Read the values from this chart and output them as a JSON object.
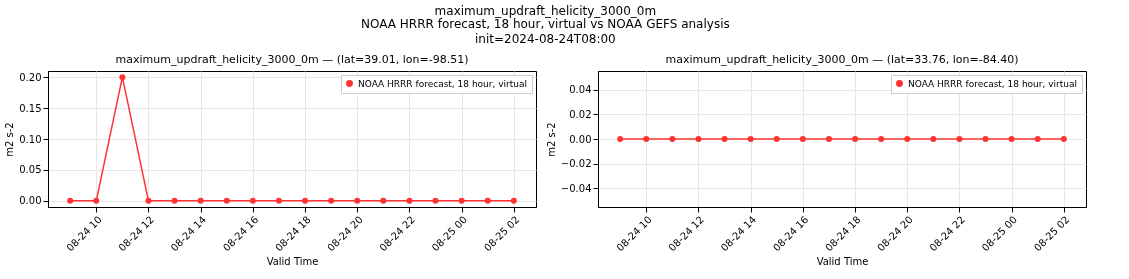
{
  "chart_data": [
    {
      "type": "other",
      "title": "maximum_updraft_helicity_3000_0m",
      "subtitle": "NOAA HRRR forecast, 18 hour, virtual vs NOAA GEFS analysis",
      "annotations": [
        "init=2024-08-24T08:00"
      ]
    },
    {
      "type": "line",
      "title": "maximum_updraft_helicity_3000_0m — (lat=39.01, lon=-98.51)",
      "xlabel": "Valid Time",
      "ylabel": "m2 s-2",
      "x": [
        "2024-08-24T09:00",
        "2024-08-24T10:00",
        "2024-08-24T11:00",
        "2024-08-24T12:00",
        "2024-08-24T13:00",
        "2024-08-24T14:00",
        "2024-08-24T15:00",
        "2024-08-24T16:00",
        "2024-08-24T17:00",
        "2024-08-24T18:00",
        "2024-08-24T19:00",
        "2024-08-24T20:00",
        "2024-08-24T21:00",
        "2024-08-24T22:00",
        "2024-08-24T23:00",
        "2024-08-25T00:00",
        "2024-08-25T01:00",
        "2024-08-25T02:00"
      ],
      "series": [
        {
          "name": "NOAA HRRR forecast, 18 hour, virtual",
          "color": "#ff3333",
          "values": [
            0,
            0,
            0.2,
            0,
            0,
            0,
            0,
            0,
            0,
            0,
            0,
            0,
            0,
            0,
            0,
            0,
            0,
            0
          ]
        }
      ],
      "xlim": [
        "2024-08-24T08:09",
        "2024-08-25T02:51"
      ],
      "xticks": [
        {
          "value": "2024-08-24T10:00",
          "label": "08-24 10"
        },
        {
          "value": "2024-08-24T12:00",
          "label": "08-24 12"
        },
        {
          "value": "2024-08-24T14:00",
          "label": "08-24 14"
        },
        {
          "value": "2024-08-24T16:00",
          "label": "08-24 16"
        },
        {
          "value": "2024-08-24T18:00",
          "label": "08-24 18"
        },
        {
          "value": "2024-08-24T20:00",
          "label": "08-24 20"
        },
        {
          "value": "2024-08-24T22:00",
          "label": "08-24 22"
        },
        {
          "value": "2024-08-25T00:00",
          "label": "08-25 00"
        },
        {
          "value": "2024-08-25T02:00",
          "label": "08-25 02"
        }
      ],
      "ylim": [
        -0.01,
        0.21
      ],
      "yticks": [
        {
          "value": 0,
          "label": "0.00"
        },
        {
          "value": 0.05,
          "label": "0.05"
        },
        {
          "value": 0.1,
          "label": "0.10"
        },
        {
          "value": 0.15,
          "label": "0.15"
        },
        {
          "value": 0.2,
          "label": "0.20"
        }
      ],
      "grid": true,
      "legend": "top right",
      "marker": "circle",
      "line_style": "solid"
    },
    {
      "type": "line",
      "title": "maximum_updraft_helicity_3000_0m — (lat=33.76, lon=-84.40)",
      "xlabel": "Valid Time",
      "ylabel": "m2 s-2",
      "x": [
        "2024-08-24T09:00",
        "2024-08-24T10:00",
        "2024-08-24T11:00",
        "2024-08-24T12:00",
        "2024-08-24T13:00",
        "2024-08-24T14:00",
        "2024-08-24T15:00",
        "2024-08-24T16:00",
        "2024-08-24T17:00",
        "2024-08-24T18:00",
        "2024-08-24T19:00",
        "2024-08-24T20:00",
        "2024-08-24T21:00",
        "2024-08-24T22:00",
        "2024-08-24T23:00",
        "2024-08-25T00:00",
        "2024-08-25T01:00",
        "2024-08-25T02:00"
      ],
      "series": [
        {
          "name": "NOAA HRRR forecast, 18 hour, virtual",
          "color": "#ff3333",
          "values": [
            0,
            0,
            0,
            0,
            0,
            0,
            0,
            0,
            0,
            0,
            0,
            0,
            0,
            0,
            0,
            0,
            0,
            0
          ]
        }
      ],
      "xlim": [
        "2024-08-24T08:09",
        "2024-08-25T02:51"
      ],
      "xticks": [
        {
          "value": "2024-08-24T10:00",
          "label": "08-24 10"
        },
        {
          "value": "2024-08-24T12:00",
          "label": "08-24 12"
        },
        {
          "value": "2024-08-24T14:00",
          "label": "08-24 14"
        },
        {
          "value": "2024-08-24T16:00",
          "label": "08-24 16"
        },
        {
          "value": "2024-08-24T18:00",
          "label": "08-24 18"
        },
        {
          "value": "2024-08-24T20:00",
          "label": "08-24 20"
        },
        {
          "value": "2024-08-24T22:00",
          "label": "08-24 22"
        },
        {
          "value": "2024-08-25T00:00",
          "label": "08-25 00"
        },
        {
          "value": "2024-08-25T02:00",
          "label": "08-25 02"
        }
      ],
      "ylim": [
        -0.055,
        0.055
      ],
      "yticks": [
        {
          "value": -0.04,
          "label": "−0.04"
        },
        {
          "value": -0.02,
          "label": "−0.02"
        },
        {
          "value": 0,
          "label": "0.00"
        },
        {
          "value": 0.02,
          "label": "0.02"
        },
        {
          "value": 0.04,
          "label": "0.04"
        }
      ],
      "grid": true,
      "legend": "top right",
      "marker": "circle",
      "line_style": "solid"
    }
  ]
}
